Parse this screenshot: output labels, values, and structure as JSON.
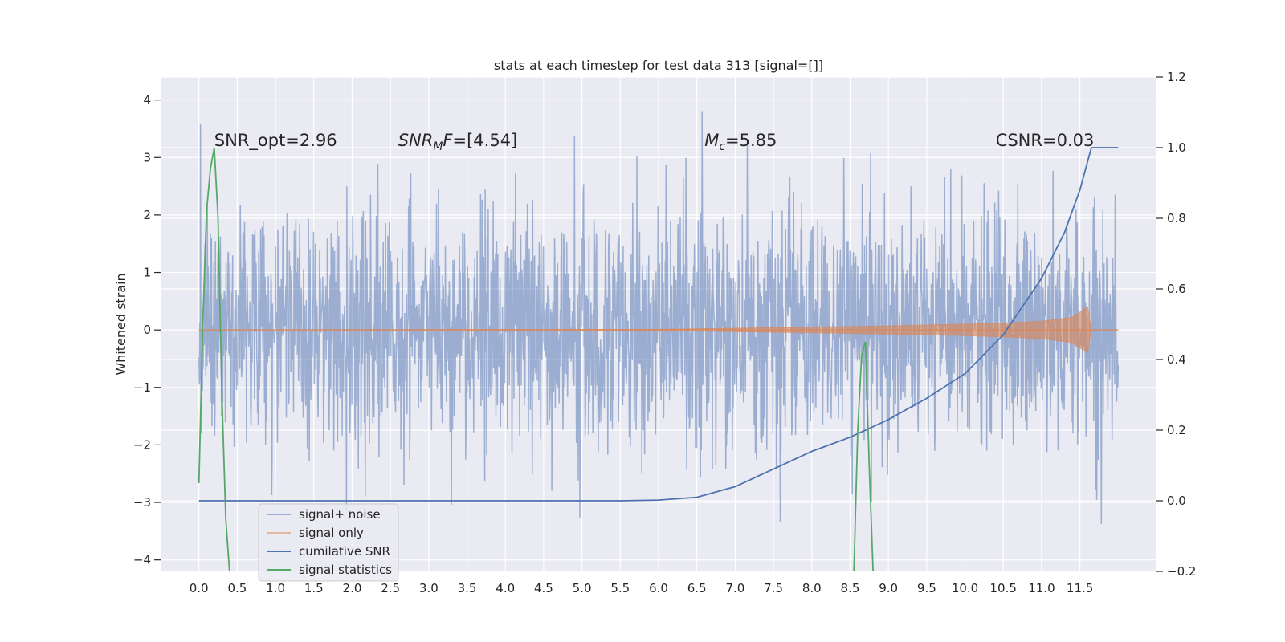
{
  "chart_data": {
    "type": "line",
    "title": "stats at each timestep for test data 313 [signal=[]]",
    "ylabel": "Whitened strain",
    "xlabel": "",
    "xlim": [
      -0.5,
      12.5
    ],
    "ylim_left": [
      -4.2,
      4.4
    ],
    "ylim_right": [
      -0.2,
      1.2
    ],
    "x_ticks": [
      0.0,
      0.5,
      1.0,
      1.5,
      2.0,
      2.5,
      3.0,
      3.5,
      4.0,
      4.5,
      5.0,
      5.5,
      6.0,
      6.5,
      7.0,
      7.5,
      8.0,
      8.5,
      9.0,
      9.5,
      10.0,
      10.5,
      11.0,
      11.5
    ],
    "x_tick_labels": [
      "0.0",
      "0.5",
      "1.0",
      "1.5",
      "2.0",
      "2.5",
      "3.0",
      "3.5",
      "4.0",
      "4.5",
      "5.0",
      "5.5",
      "6.0",
      "6.5",
      "7.0",
      "7.5",
      "8.0",
      "8.5",
      "9.0",
      "9.5",
      "10.0",
      "10.5",
      "11.0",
      "11.5"
    ],
    "y_left_ticks": [
      -4,
      -3,
      -2,
      -1,
      0,
      1,
      2,
      3,
      4
    ],
    "y_left_tick_labels": [
      "−4",
      "−3",
      "−2",
      "−1",
      "0",
      "1",
      "2",
      "3",
      "4"
    ],
    "y_right_ticks": [
      -0.2,
      0.0,
      0.2,
      0.4,
      0.6,
      0.8,
      1.0,
      1.2
    ],
    "y_right_tick_labels": [
      "−0.2",
      "0.0",
      "0.2",
      "0.4",
      "0.6",
      "0.8",
      "1.0",
      "1.2"
    ],
    "grid": true,
    "legend_position": "lower-left",
    "annotations": [
      {
        "text": "SNR_opt=2.96",
        "x": 0.2,
        "y": 3.3
      },
      {
        "text": "SNR_MF=[4.54]",
        "x": 2.6,
        "y": 3.3
      },
      {
        "text": "M_c=5.85",
        "x": 6.6,
        "y": 3.3
      },
      {
        "text": "CSNR=0.03",
        "x": 10.4,
        "y": 3.3
      }
    ],
    "series": [
      {
        "name": "signal+ noise",
        "axis": "left",
        "color": "#4c72b0",
        "opacity": 0.5,
        "description_values": {
          "x_range": [
            0.0,
            12.0
          ],
          "typical_envelope": [
            -2.0,
            2.0
          ],
          "max": 4.1,
          "min": -3.8
        }
      },
      {
        "name": "signal only",
        "axis": "left",
        "color": "#dd8452",
        "opacity": 0.5,
        "envelope": [
          {
            "x": 0.0,
            "amp": 0.0
          },
          {
            "x": 6.0,
            "amp": 0.01
          },
          {
            "x": 7.0,
            "amp": 0.03
          },
          {
            "x": 8.0,
            "amp": 0.05
          },
          {
            "x": 9.0,
            "amp": 0.07
          },
          {
            "x": 10.0,
            "amp": 0.1
          },
          {
            "x": 10.5,
            "amp": 0.12
          },
          {
            "x": 11.0,
            "amp": 0.15
          },
          {
            "x": 11.4,
            "amp": 0.22
          },
          {
            "x": 11.6,
            "amp": 0.4
          },
          {
            "x": 11.65,
            "amp": 0.0
          },
          {
            "x": 12.0,
            "amp": 0.0
          }
        ]
      },
      {
        "name": "cumilative SNR",
        "axis": "right",
        "color": "#4c72b0",
        "opacity": 1.0,
        "x": [
          0.0,
          5.5,
          6.0,
          6.5,
          7.0,
          7.5,
          8.0,
          8.5,
          9.0,
          9.5,
          10.0,
          10.5,
          11.0,
          11.3,
          11.5,
          11.65,
          11.7,
          12.0
        ],
        "y": [
          0.0,
          0.0,
          0.002,
          0.01,
          0.04,
          0.09,
          0.14,
          0.18,
          0.23,
          0.29,
          0.36,
          0.47,
          0.63,
          0.76,
          0.88,
          1.0,
          1.0,
          1.0
        ]
      },
      {
        "name": "signal statistics",
        "axis": "right",
        "color": "#55a868",
        "opacity": 1.0,
        "x": [
          0.0,
          0.05,
          0.1,
          0.15,
          0.2,
          0.25,
          0.3,
          0.35,
          0.4,
          8.55,
          8.6,
          8.65,
          8.7,
          8.75,
          8.8,
          8.85
        ],
        "y": [
          0.05,
          0.5,
          0.82,
          0.94,
          1.0,
          0.8,
          0.3,
          -0.05,
          -0.2,
          -0.2,
          0.2,
          0.41,
          0.45,
          0.1,
          -0.2,
          -0.2
        ],
        "segments": [
          [
            0,
            8
          ],
          [
            9,
            15
          ]
        ]
      }
    ],
    "legend_entries": [
      "signal+ noise",
      "signal only",
      "cumilative SNR",
      "signal statistics"
    ]
  }
}
